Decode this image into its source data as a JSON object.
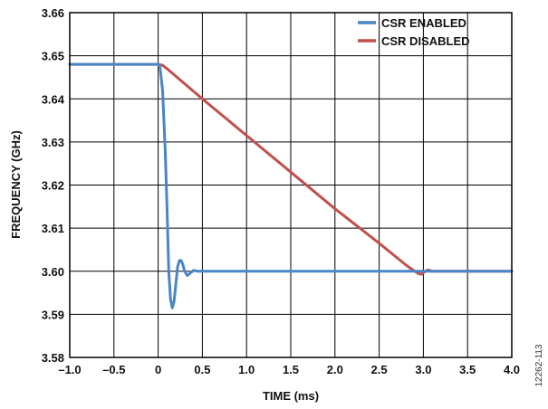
{
  "chart_data": {
    "type": "line",
    "title": "",
    "xlabel": "TIME (ms)",
    "ylabel": "FREQUENCY (GHz)",
    "xlim": [
      -1.0,
      4.0
    ],
    "ylim": [
      3.58,
      3.66
    ],
    "x_ticks": [
      -1.0,
      -0.5,
      0,
      0.5,
      1.0,
      1.5,
      2.0,
      2.5,
      3.0,
      3.5,
      4.0
    ],
    "x_tick_labels": [
      "–1.0",
      "–0.5",
      "0",
      "0.5",
      "1.0",
      "1.5",
      "2.0",
      "2.5",
      "3.0",
      "3.5",
      "4.0"
    ],
    "y_ticks": [
      3.58,
      3.59,
      3.6,
      3.61,
      3.62,
      3.63,
      3.64,
      3.65,
      3.66
    ],
    "y_tick_labels": [
      "3.58",
      "3.59",
      "3.60",
      "3.61",
      "3.62",
      "3.63",
      "3.64",
      "3.65",
      "3.66"
    ],
    "grid": true,
    "legend_position": "top-right",
    "series": [
      {
        "name": "CSR ENABLED",
        "color": "#4a86c5",
        "x": [
          -1.0,
          0.0,
          0.02,
          0.05,
          0.08,
          0.1,
          0.12,
          0.14,
          0.16,
          0.18,
          0.2,
          0.22,
          0.24,
          0.26,
          0.28,
          0.3,
          0.33,
          0.36,
          0.4,
          0.45,
          0.5,
          0.6,
          1.0,
          2.0,
          3.0,
          4.0
        ],
        "y": [
          3.648,
          3.648,
          3.6475,
          3.642,
          3.628,
          3.615,
          3.6,
          3.5935,
          3.5915,
          3.593,
          3.597,
          3.601,
          3.6025,
          3.6025,
          3.6015,
          3.6,
          3.599,
          3.5995,
          3.6002,
          3.6,
          3.6,
          3.6,
          3.6,
          3.6,
          3.6,
          3.6
        ]
      },
      {
        "name": "CSR DISABLED",
        "color": "#c0504d",
        "x": [
          -1.0,
          0.0,
          0.05,
          0.1,
          0.5,
          1.0,
          1.5,
          2.0,
          2.5,
          2.8,
          2.9,
          2.95,
          2.98,
          3.0,
          3.05,
          3.1,
          3.5,
          4.0
        ],
        "y": [
          3.648,
          3.648,
          3.6478,
          3.647,
          3.64,
          3.6315,
          3.623,
          3.6145,
          3.6065,
          3.6015,
          3.6,
          3.5994,
          3.5993,
          3.5997,
          3.6003,
          3.6,
          3.6,
          3.6
        ]
      }
    ]
  },
  "figure_id": "12262-113"
}
